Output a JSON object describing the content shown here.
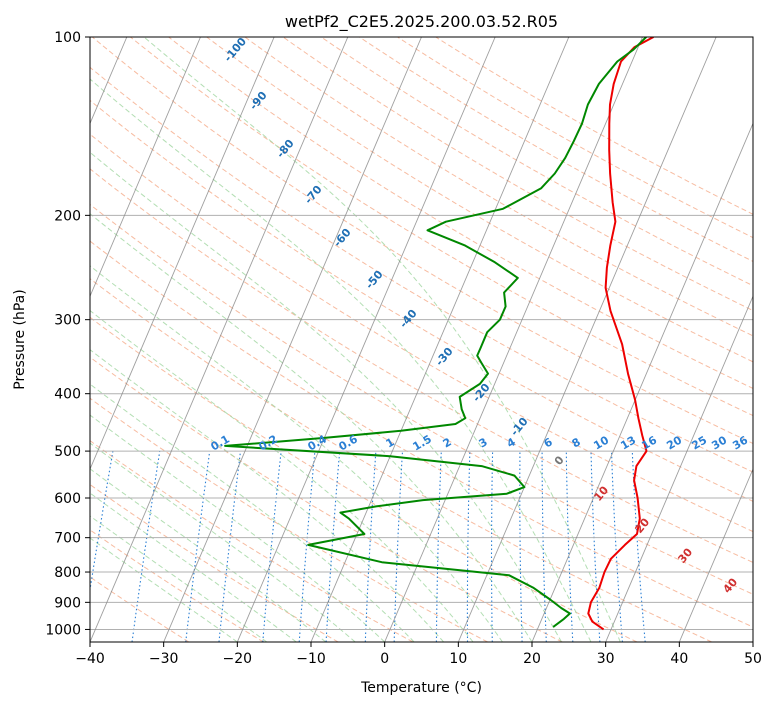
{
  "chart_data": {
    "type": "line",
    "title": "wetPf2_C2E5.2025.200.03.52.R05",
    "xlabel": "Temperature (°C)",
    "ylabel": "Pressure (hPa)",
    "xlim": [
      -40,
      50
    ],
    "ylim": [
      1050,
      100
    ],
    "y_scale": "log",
    "grid": true,
    "x_ticks": [
      -40,
      -30,
      -20,
      -10,
      0,
      10,
      20,
      30,
      40,
      50
    ],
    "y_ticks": [
      1000,
      900,
      800,
      700,
      600,
      500,
      400,
      300,
      200,
      100
    ],
    "series": [
      {
        "name": "",
        "color": "#ee0000",
        "points": [
          [
            29,
            1000
          ],
          [
            27,
            970
          ],
          [
            26,
            940
          ],
          [
            25.7,
            900
          ],
          [
            26,
            850
          ],
          [
            25.8,
            800
          ],
          [
            25.9,
            760
          ],
          [
            27,
            720
          ],
          [
            28,
            690
          ],
          [
            27.5,
            650
          ],
          [
            26,
            600
          ],
          [
            24.5,
            560
          ],
          [
            24,
            530
          ],
          [
            24.5,
            500
          ],
          [
            23,
            470
          ],
          [
            21.5,
            440
          ],
          [
            20,
            410
          ],
          [
            17.5,
            370
          ],
          [
            15,
            330
          ],
          [
            11.5,
            290
          ],
          [
            9.5,
            265
          ],
          [
            8.5,
            245
          ],
          [
            7.7,
            225
          ],
          [
            7,
            205
          ],
          [
            5.5,
            190
          ],
          [
            3.5,
            170
          ],
          [
            2,
            155
          ],
          [
            0.5,
            140
          ],
          [
            -0.5,
            130
          ],
          [
            -1.2,
            120
          ],
          [
            -1.5,
            110
          ],
          [
            -0.5,
            104
          ],
          [
            1.5,
            100
          ]
        ]
      },
      {
        "name": "",
        "color": "#008800",
        "points": [
          [
            22,
            990
          ],
          [
            23,
            960
          ],
          [
            23.5,
            940
          ],
          [
            22,
            920
          ],
          [
            20,
            890
          ],
          [
            17,
            850
          ],
          [
            13,
            810
          ],
          [
            -5,
            770
          ],
          [
            -16,
            720
          ],
          [
            -9,
            690
          ],
          [
            -12,
            650
          ],
          [
            -13.5,
            635
          ],
          [
            -9,
            620
          ],
          [
            -3,
            605
          ],
          [
            8,
            590
          ],
          [
            10,
            575
          ],
          [
            8,
            550
          ],
          [
            3,
            530
          ],
          [
            -10,
            510
          ],
          [
            -33,
            490
          ],
          [
            -20,
            475
          ],
          [
            -10,
            462
          ],
          [
            -3,
            450
          ],
          [
            -2,
            440
          ],
          [
            -3,
            425
          ],
          [
            -4,
            405
          ],
          [
            -2,
            385
          ],
          [
            -1.5,
            370
          ],
          [
            -3,
            355
          ],
          [
            -4,
            345
          ],
          [
            -4,
            335
          ],
          [
            -4,
            315
          ],
          [
            -3,
            300
          ],
          [
            -3,
            285
          ],
          [
            -4,
            270
          ],
          [
            -3,
            255
          ],
          [
            -7,
            240
          ],
          [
            -12,
            225
          ],
          [
            -18,
            212
          ],
          [
            -16,
            205
          ],
          [
            -9,
            195
          ],
          [
            -5,
            180
          ],
          [
            -4,
            170
          ],
          [
            -3.5,
            160
          ],
          [
            -3.3,
            150
          ],
          [
            -3.2,
            140
          ],
          [
            -3.5,
            130
          ],
          [
            -3.2,
            120
          ],
          [
            -2,
            110
          ],
          [
            -0.5,
            105
          ],
          [
            0.5,
            100
          ]
        ]
      }
    ],
    "dry_adiabat_labels": [
      "-100",
      "-90",
      "-80",
      "-70",
      "-60",
      "-50",
      "-40",
      "-30",
      "-20",
      "-10",
      "0",
      "10",
      "20",
      "30",
      "40"
    ],
    "mixing_ratio_labels": [
      "0.1",
      "0.2",
      "0.4",
      "0.6",
      "1",
      "1.5",
      "2",
      "3",
      "4",
      "6",
      "8",
      "10",
      "13",
      "16",
      "20",
      "25",
      "30",
      "36"
    ],
    "colors": {
      "temperature": "#ee0000",
      "dewpoint": "#008800",
      "dry_adiabat": "#f4a582",
      "moist_adiabat": "#a6d8a6",
      "mixing_ratio": "#2a7fd4",
      "isotherm": "#888888",
      "grid": "#b0b0b0",
      "label_blue": "#1f6fb4",
      "label_red": "#d03030",
      "label_gray": "#777777"
    }
  }
}
